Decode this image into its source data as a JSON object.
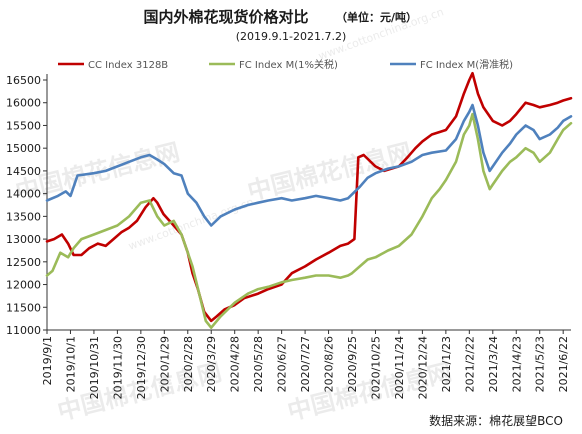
{
  "chart_data": {
    "type": "line",
    "title": "国内外棉花现货价格对比",
    "unit_note": "（单位：元/吨）",
    "subtitle": "(2019.9.1-2021.7.2)",
    "source": "数据来源：棉花展望BCO",
    "watermark_text": "中国棉花信息网",
    "watermark_url": "www.cottonchina.org.cn",
    "ylim": [
      11000,
      16500
    ],
    "y_ticks": [
      11000,
      11500,
      12000,
      12500,
      13000,
      13500,
      14000,
      14500,
      15000,
      15500,
      16000,
      16500
    ],
    "x_tick_labels": [
      "2019/9/1",
      "2019/10/1",
      "2019/10/31",
      "2019/11/30",
      "2019/12/30",
      "2020/1/29",
      "2020/2/28",
      "2020/3/29",
      "2020/4/28",
      "2020/5/28",
      "2020/6/27",
      "2020/7/27",
      "2020/8/26",
      "2020/9/25",
      "2020/10/25",
      "2020/11/24",
      "2020/12/24",
      "2021/1/23",
      "2021/2/22",
      "2021/3/24",
      "2021/4/23",
      "2021/5/23",
      "2021/6/22"
    ],
    "x_range": [
      "2019-09-01",
      "2021-07-02"
    ],
    "legend_position": "top",
    "grid": false,
    "series": [
      {
        "name": "CC Index 3128B",
        "color": "#c00000",
        "points": [
          [
            "2019-09-01",
            12950
          ],
          [
            "2019-09-10",
            13000
          ],
          [
            "2019-09-20",
            13100
          ],
          [
            "2019-09-28",
            12900
          ],
          [
            "2019-10-05",
            12650
          ],
          [
            "2019-10-15",
            12650
          ],
          [
            "2019-10-25",
            12800
          ],
          [
            "2019-11-05",
            12900
          ],
          [
            "2019-11-15",
            12850
          ],
          [
            "2019-11-25",
            13000
          ],
          [
            "2019-12-05",
            13150
          ],
          [
            "2019-12-15",
            13250
          ],
          [
            "2019-12-25",
            13400
          ],
          [
            "2020-01-05",
            13700
          ],
          [
            "2020-01-15",
            13900
          ],
          [
            "2020-01-20",
            13800
          ],
          [
            "2020-01-28",
            13550
          ],
          [
            "2020-02-10",
            13300
          ],
          [
            "2020-02-20",
            13100
          ],
          [
            "2020-02-28",
            12700
          ],
          [
            "2020-03-05",
            12250
          ],
          [
            "2020-03-12",
            11900
          ],
          [
            "2020-03-20",
            11400
          ],
          [
            "2020-03-29",
            11200
          ],
          [
            "2020-04-05",
            11300
          ],
          [
            "2020-04-15",
            11450
          ],
          [
            "2020-04-28",
            11550
          ],
          [
            "2020-05-10",
            11700
          ],
          [
            "2020-05-28",
            11800
          ],
          [
            "2020-06-10",
            11900
          ],
          [
            "2020-06-27",
            12000
          ],
          [
            "2020-07-10",
            12250
          ],
          [
            "2020-07-27",
            12400
          ],
          [
            "2020-08-10",
            12550
          ],
          [
            "2020-08-26",
            12700
          ],
          [
            "2020-09-10",
            12850
          ],
          [
            "2020-09-20",
            12900
          ],
          [
            "2020-09-28",
            13000
          ],
          [
            "2020-10-03",
            14800
          ],
          [
            "2020-10-10",
            14850
          ],
          [
            "2020-10-25",
            14600
          ],
          [
            "2020-11-05",
            14500
          ],
          [
            "2020-11-24",
            14600
          ],
          [
            "2020-12-05",
            14800
          ],
          [
            "2020-12-15",
            15000
          ],
          [
            "2020-12-24",
            15150
          ],
          [
            "2021-01-05",
            15300
          ],
          [
            "2021-01-23",
            15400
          ],
          [
            "2021-02-05",
            15700
          ],
          [
            "2021-02-15",
            16200
          ],
          [
            "2021-02-22",
            16500
          ],
          [
            "2021-02-26",
            16650
          ],
          [
            "2021-03-05",
            16200
          ],
          [
            "2021-03-12",
            15900
          ],
          [
            "2021-03-24",
            15600
          ],
          [
            "2021-04-05",
            15500
          ],
          [
            "2021-04-15",
            15600
          ],
          [
            "2021-04-23",
            15750
          ],
          [
            "2021-05-05",
            16000
          ],
          [
            "2021-05-15",
            15950
          ],
          [
            "2021-05-23",
            15900
          ],
          [
            "2021-06-05",
            15950
          ],
          [
            "2021-06-15",
            16000
          ],
          [
            "2021-06-22",
            16050
          ],
          [
            "2021-07-02",
            16100
          ]
        ]
      },
      {
        "name": "FC Index M(1%关税)",
        "color": "#9bbb59",
        "points": [
          [
            "2019-09-01",
            12200
          ],
          [
            "2019-09-08",
            12300
          ],
          [
            "2019-09-18",
            12700
          ],
          [
            "2019-09-28",
            12600
          ],
          [
            "2019-10-05",
            12800
          ],
          [
            "2019-10-15",
            13000
          ],
          [
            "2019-10-31",
            13100
          ],
          [
            "2019-11-15",
            13200
          ],
          [
            "2019-11-30",
            13300
          ],
          [
            "2019-12-15",
            13500
          ],
          [
            "2019-12-30",
            13800
          ],
          [
            "2020-01-10",
            13850
          ],
          [
            "2020-01-20",
            13500
          ],
          [
            "2020-01-29",
            13300
          ],
          [
            "2020-02-10",
            13400
          ],
          [
            "2020-02-20",
            13100
          ],
          [
            "2020-02-28",
            12700
          ],
          [
            "2020-03-05",
            12400
          ],
          [
            "2020-03-15",
            11700
          ],
          [
            "2020-03-22",
            11200
          ],
          [
            "2020-03-29",
            11050
          ],
          [
            "2020-04-10",
            11300
          ],
          [
            "2020-04-28",
            11600
          ],
          [
            "2020-05-15",
            11800
          ],
          [
            "2020-05-28",
            11900
          ],
          [
            "2020-06-10",
            11950
          ],
          [
            "2020-06-27",
            12050
          ],
          [
            "2020-07-10",
            12100
          ],
          [
            "2020-07-27",
            12150
          ],
          [
            "2020-08-10",
            12200
          ],
          [
            "2020-08-26",
            12200
          ],
          [
            "2020-09-10",
            12150
          ],
          [
            "2020-09-20",
            12200
          ],
          [
            "2020-09-25",
            12250
          ],
          [
            "2020-10-05",
            12400
          ],
          [
            "2020-10-15",
            12550
          ],
          [
            "2020-10-25",
            12600
          ],
          [
            "2020-11-10",
            12750
          ],
          [
            "2020-11-24",
            12850
          ],
          [
            "2020-12-10",
            13100
          ],
          [
            "2020-12-24",
            13500
          ],
          [
            "2021-01-05",
            13900
          ],
          [
            "2021-01-15",
            14100
          ],
          [
            "2021-01-23",
            14300
          ],
          [
            "2021-02-05",
            14700
          ],
          [
            "2021-02-15",
            15300
          ],
          [
            "2021-02-22",
            15500
          ],
          [
            "2021-02-26",
            15750
          ],
          [
            "2021-03-05",
            15200
          ],
          [
            "2021-03-12",
            14500
          ],
          [
            "2021-03-20",
            14100
          ],
          [
            "2021-03-24",
            14200
          ],
          [
            "2021-04-05",
            14500
          ],
          [
            "2021-04-15",
            14700
          ],
          [
            "2021-04-23",
            14800
          ],
          [
            "2021-05-05",
            15000
          ],
          [
            "2021-05-15",
            14900
          ],
          [
            "2021-05-23",
            14700
          ],
          [
            "2021-06-05",
            14900
          ],
          [
            "2021-06-15",
            15200
          ],
          [
            "2021-06-22",
            15400
          ],
          [
            "2021-07-02",
            15550
          ]
        ]
      },
      {
        "name": "FC Index M(滑准税)",
        "color": "#4f81bd",
        "points": [
          [
            "2019-09-01",
            13850
          ],
          [
            "2019-09-15",
            13950
          ],
          [
            "2019-09-25",
            14050
          ],
          [
            "2019-10-01",
            13950
          ],
          [
            "2019-10-10",
            14400
          ],
          [
            "2019-10-31",
            14450
          ],
          [
            "2019-11-15",
            14500
          ],
          [
            "2019-11-30",
            14600
          ],
          [
            "2019-12-15",
            14700
          ],
          [
            "2019-12-30",
            14800
          ],
          [
            "2020-01-10",
            14850
          ],
          [
            "2020-01-20",
            14750
          ],
          [
            "2020-01-29",
            14650
          ],
          [
            "2020-02-10",
            14450
          ],
          [
            "2020-02-20",
            14400
          ],
          [
            "2020-02-28",
            14000
          ],
          [
            "2020-03-10",
            13800
          ],
          [
            "2020-03-20",
            13500
          ],
          [
            "2020-03-29",
            13300
          ],
          [
            "2020-04-10",
            13500
          ],
          [
            "2020-04-28",
            13650
          ],
          [
            "2020-05-15",
            13750
          ],
          [
            "2020-05-28",
            13800
          ],
          [
            "2020-06-10",
            13850
          ],
          [
            "2020-06-27",
            13900
          ],
          [
            "2020-07-10",
            13850
          ],
          [
            "2020-07-27",
            13900
          ],
          [
            "2020-08-10",
            13950
          ],
          [
            "2020-08-26",
            13900
          ],
          [
            "2020-09-10",
            13850
          ],
          [
            "2020-09-20",
            13900
          ],
          [
            "2020-10-05",
            14150
          ],
          [
            "2020-10-15",
            14350
          ],
          [
            "2020-10-25",
            14450
          ],
          [
            "2020-11-10",
            14550
          ],
          [
            "2020-11-24",
            14600
          ],
          [
            "2020-12-10",
            14700
          ],
          [
            "2020-12-24",
            14850
          ],
          [
            "2021-01-05",
            14900
          ],
          [
            "2021-01-23",
            14950
          ],
          [
            "2021-02-05",
            15200
          ],
          [
            "2021-02-15",
            15600
          ],
          [
            "2021-02-22",
            15800
          ],
          [
            "2021-02-26",
            15950
          ],
          [
            "2021-03-05",
            15500
          ],
          [
            "2021-03-12",
            14900
          ],
          [
            "2021-03-20",
            14500
          ],
          [
            "2021-03-24",
            14600
          ],
          [
            "2021-04-05",
            14900
          ],
          [
            "2021-04-15",
            15100
          ],
          [
            "2021-04-23",
            15300
          ],
          [
            "2021-05-05",
            15500
          ],
          [
            "2021-05-15",
            15400
          ],
          [
            "2021-05-23",
            15200
          ],
          [
            "2021-06-05",
            15300
          ],
          [
            "2021-06-15",
            15450
          ],
          [
            "2021-06-22",
            15600
          ],
          [
            "2021-07-02",
            15700
          ]
        ]
      }
    ]
  }
}
